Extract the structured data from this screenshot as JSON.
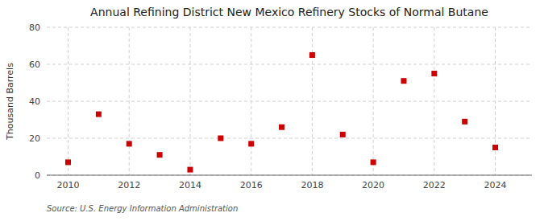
{
  "chart_data": {
    "type": "scatter",
    "title": "Annual Refining District New Mexico Refinery Stocks of Normal Butane",
    "ylabel": "Thousand Barrels",
    "source": "Source: U.S. Energy Information Administration",
    "x": [
      2010,
      2011,
      2012,
      2013,
      2014,
      2015,
      2016,
      2017,
      2018,
      2019,
      2020,
      2021,
      2022,
      2023,
      2024
    ],
    "values": [
      7,
      33,
      17,
      11,
      3,
      20,
      17,
      26,
      65,
      22,
      7,
      51,
      55,
      29,
      15
    ],
    "xlim": [
      2009.3,
      2025.2
    ],
    "ylim": [
      0,
      80
    ],
    "xticks": [
      2010,
      2012,
      2014,
      2016,
      2018,
      2020,
      2022,
      2024
    ],
    "yticks": [
      0,
      20,
      40,
      60,
      80
    ],
    "color": "#cc0000",
    "marker": "square",
    "grid": true
  }
}
